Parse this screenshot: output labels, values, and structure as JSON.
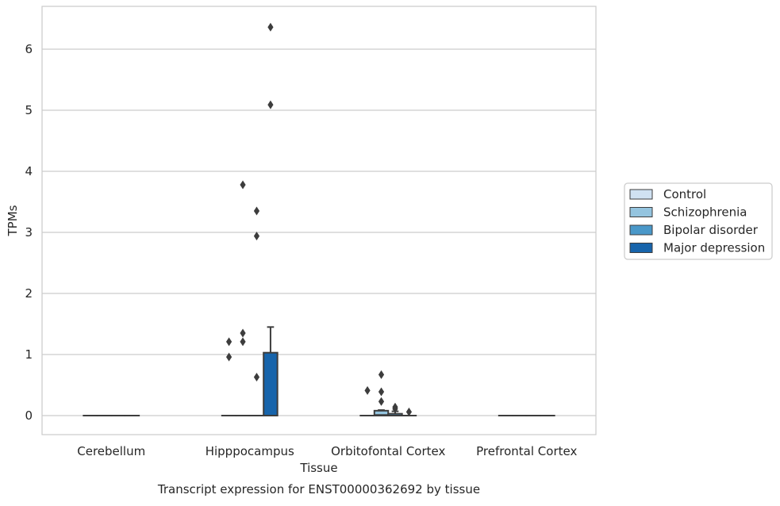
{
  "chart_data": {
    "type": "box",
    "title": "",
    "caption": "Transcript expression for ENST00000362692 by tissue",
    "xlabel": "Tissue",
    "ylabel": "TPMs",
    "ylim": [
      -0.31,
      6.7
    ],
    "yticks": [
      0,
      1,
      2,
      3,
      4,
      5,
      6
    ],
    "grid": "horizontal",
    "legend_position": "right",
    "categories": [
      "Cerebellum",
      "Hipppocampus",
      "Orbitofontal Cortex",
      "Prefrontal Cortex"
    ],
    "series": [
      {
        "name": "Control",
        "color": "#d0e1f2",
        "boxes": [
          {
            "q1": 0,
            "median": 0,
            "q3": 0,
            "whislo": 0,
            "whishi": 0,
            "fliers": []
          },
          {
            "q1": 0,
            "median": 0,
            "q3": 0,
            "whislo": 0,
            "whishi": 0,
            "fliers": [
              0.96,
              1.21
            ]
          },
          {
            "q1": 0,
            "median": 0,
            "q3": 0,
            "whislo": 0,
            "whishi": 0,
            "fliers": [
              0.41
            ]
          },
          {
            "q1": 0,
            "median": 0,
            "q3": 0,
            "whislo": 0,
            "whishi": 0,
            "fliers": []
          }
        ]
      },
      {
        "name": "Schizophrenia",
        "color": "#94c4df",
        "boxes": [
          {
            "q1": 0,
            "median": 0,
            "q3": 0,
            "whislo": 0,
            "whishi": 0,
            "fliers": []
          },
          {
            "q1": 0,
            "median": 0,
            "q3": 0,
            "whislo": 0,
            "whishi": 0,
            "fliers": [
              1.21,
              1.35,
              3.78
            ]
          },
          {
            "q1": 0,
            "median": 0.01,
            "q3": 0.08,
            "whislo": 0,
            "whishi": 0.09,
            "fliers": [
              0.23,
              0.39,
              0.67
            ]
          },
          {
            "q1": 0,
            "median": 0,
            "q3": 0,
            "whislo": 0,
            "whishi": 0,
            "fliers": []
          }
        ]
      },
      {
        "name": "Bipolar disorder",
        "color": "#4a98c9",
        "boxes": [
          {
            "q1": 0,
            "median": 0,
            "q3": 0,
            "whislo": 0,
            "whishi": 0,
            "fliers": []
          },
          {
            "q1": 0,
            "median": 0,
            "q3": 0,
            "whislo": 0,
            "whishi": 0,
            "fliers": [
              0.63,
              2.94,
              3.35
            ]
          },
          {
            "q1": 0,
            "median": 0,
            "q3": 0.03,
            "whislo": 0,
            "whishi": 0.07,
            "fliers": [
              0.11,
              0.14
            ]
          },
          {
            "q1": 0,
            "median": 0,
            "q3": 0,
            "whislo": 0,
            "whishi": 0,
            "fliers": []
          }
        ]
      },
      {
        "name": "Major depression",
        "color": "#1764ab",
        "boxes": [
          {
            "q1": 0,
            "median": 0,
            "q3": 0,
            "whislo": 0,
            "whishi": 0,
            "fliers": []
          },
          {
            "q1": 0,
            "median": 0,
            "q3": 1.03,
            "whislo": 0,
            "whishi": 1.45,
            "fliers": [
              5.09,
              6.36
            ]
          },
          {
            "q1": 0,
            "median": 0,
            "q3": 0,
            "whislo": 0,
            "whishi": 0,
            "fliers": [
              0.06
            ]
          },
          {
            "q1": 0,
            "median": 0,
            "q3": 0,
            "whislo": 0,
            "whishi": 0,
            "fliers": []
          }
        ]
      }
    ]
  }
}
